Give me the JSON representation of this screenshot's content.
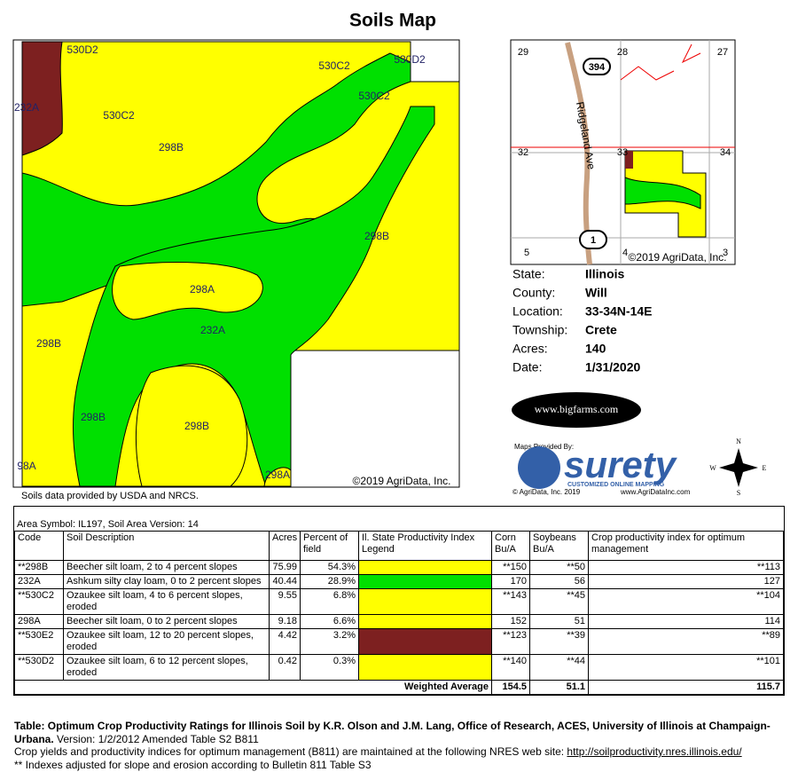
{
  "title": "Soils Map",
  "soil_map": {
    "labels": [
      "530D2",
      "232A",
      "530C2",
      "298B",
      "530C2",
      "530D2",
      "530C2",
      "298B",
      "298A",
      "232A",
      "298B",
      "298B",
      "298B",
      "98A",
      "298A"
    ],
    "copyright": "©2019 AgriData, Inc.",
    "source_note": "Soils data provided by USDA and NRCS."
  },
  "locator_map": {
    "section_numbers": [
      "29",
      "28",
      "27",
      "32",
      "33",
      "34",
      "5",
      "4",
      "3"
    ],
    "route_shields": [
      "394",
      "1"
    ],
    "road_name": "Ridgeland Ave",
    "copyright": "©2019 AgriData, Inc."
  },
  "info": {
    "fields": [
      {
        "label": "State:",
        "value": "Illinois"
      },
      {
        "label": "County:",
        "value": "Will"
      },
      {
        "label": "Location:",
        "value": "33-34N-14E"
      },
      {
        "label": "Township:",
        "value": "Crete"
      },
      {
        "label": "Acres:",
        "value": "140"
      },
      {
        "label": "Date:",
        "value": "1/31/2020"
      }
    ]
  },
  "branding": {
    "bigfarms": "www.bigfarms.com",
    "provided_by": "Maps Provided By:",
    "brand": "surety",
    "tagline": "CUSTOMIZED ONLINE MAPPING",
    "copyright": "© AgriData, Inc. 2019",
    "website": "www.AgriDataInc.com"
  },
  "compass": {
    "n": "N",
    "e": "E",
    "s": "S",
    "w": "W"
  },
  "table": {
    "area_symbol": "Area Symbol: IL197, Soil Area Version: 14",
    "headers": [
      "Code",
      "Soil Description",
      "Acres",
      "Percent of field",
      "Il. State Productivity Index Legend",
      "Corn Bu/A",
      "Soybeans Bu/A",
      "Crop productivity index for optimum management"
    ],
    "rows": [
      {
        "code": "**298B",
        "description": "Beecher silt loam, 2 to 4 percent slopes",
        "acres": "75.99",
        "percent": "54.3%",
        "legend_color": "#ffff00",
        "corn": "**150",
        "soybeans": "**50",
        "cpi": "**113"
      },
      {
        "code": "232A",
        "description": "Ashkum silty clay loam, 0 to 2 percent slopes",
        "acres": "40.44",
        "percent": "28.9%",
        "legend_color": "#00e000",
        "corn": "170",
        "soybeans": "56",
        "cpi": "127"
      },
      {
        "code": "**530C2",
        "description": "Ozaukee silt loam, 4 to 6 percent slopes, eroded",
        "acres": "9.55",
        "percent": "6.8%",
        "legend_color": "#ffff00",
        "corn": "**143",
        "soybeans": "**45",
        "cpi": "**104"
      },
      {
        "code": "298A",
        "description": "Beecher silt loam, 0 to 2 percent slopes",
        "acres": "9.18",
        "percent": "6.6%",
        "legend_color": "#ffff00",
        "corn": "152",
        "soybeans": "51",
        "cpi": "114"
      },
      {
        "code": "**530E2",
        "description": "Ozaukee silt loam, 12 to 20 percent slopes, eroded",
        "acres": "4.42",
        "percent": "3.2%",
        "legend_color": "#7d2020",
        "corn": "**123",
        "soybeans": "**39",
        "cpi": "**89"
      },
      {
        "code": "**530D2",
        "description": "Ozaukee silt loam, 6 to 12 percent slopes, eroded",
        "acres": "0.42",
        "percent": "0.3%",
        "legend_color": "#ffff00",
        "corn": "**140",
        "soybeans": "**44",
        "cpi": "**101"
      }
    ],
    "weighted_average": {
      "label": "Weighted Average",
      "corn": "154.5",
      "soybeans": "51.1",
      "cpi": "115.7"
    }
  },
  "footer": {
    "citation_bold": "Table: Optimum Crop Productivity Ratings for Illinois Soil by K.R. Olson and J.M. Lang, Office of Research, ACES, University of Illinois at Champaign-Urbana.",
    "citation_version": " Version: 1/2/2012 Amended Table S2 B811",
    "nres_text": "Crop yields and productivity indices for optimum management (B811) are maintained at the following NRES web site: ",
    "nres_link": "http://soilproductivity.nres.illinois.edu/",
    "adjusted_note": "** Indexes adjusted for slope and erosion according to Bulletin 811 Table S3"
  }
}
